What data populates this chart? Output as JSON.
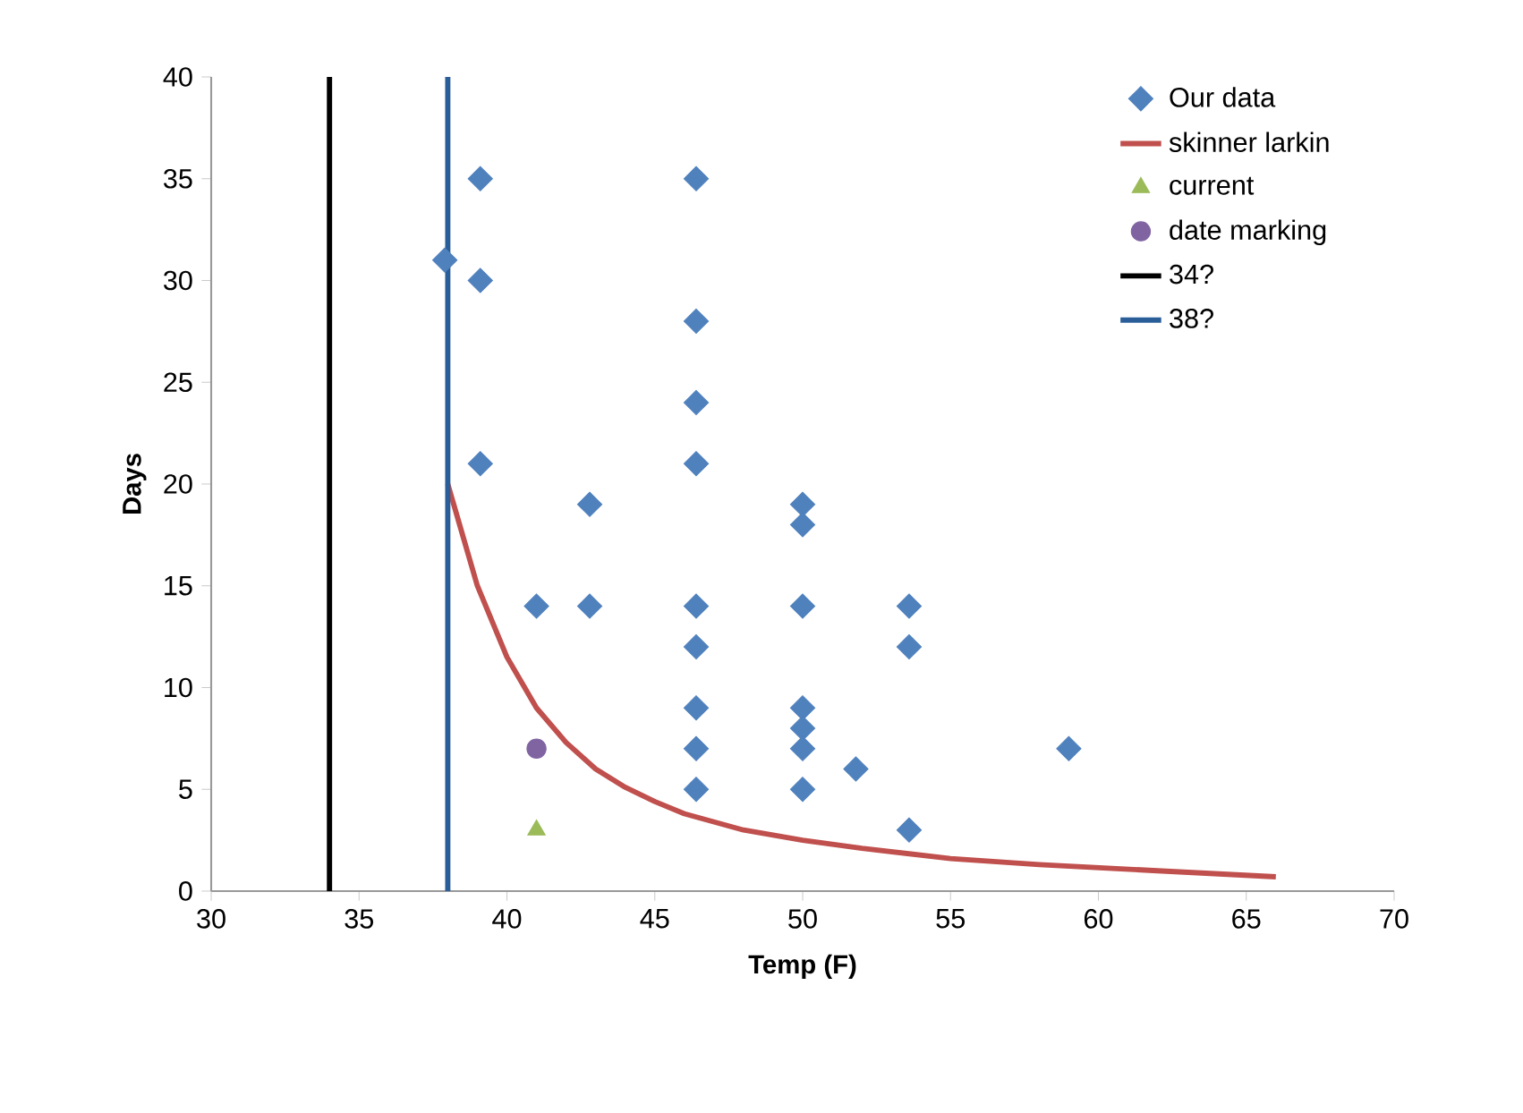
{
  "chart_data": {
    "type": "scatter",
    "xlabel": "Temp (F)",
    "ylabel": "Days",
    "xlim": [
      30,
      70
    ],
    "ylim": [
      0,
      40
    ],
    "xticks": [
      30,
      35,
      40,
      45,
      50,
      55,
      60,
      65,
      70
    ],
    "yticks": [
      0,
      5,
      10,
      15,
      20,
      25,
      30,
      35,
      40
    ],
    "grid": false,
    "legend": "top right",
    "series": [
      {
        "name": "Our data",
        "marker": "diamond",
        "color": "#4f81bd",
        "x": [
          37.9,
          39.1,
          39.1,
          39.1,
          41,
          42.8,
          42.8,
          46.4,
          46.4,
          46.4,
          46.4,
          46.4,
          46.4,
          46.4,
          46.4,
          46.4,
          50,
          50,
          50,
          50,
          50,
          50,
          50,
          51.8,
          53.6,
          53.6,
          53.6,
          59
        ],
        "values": [
          31,
          35,
          30,
          21,
          14,
          19,
          14,
          35,
          28,
          24,
          21,
          14,
          12,
          9,
          7,
          5,
          19,
          18,
          14,
          9,
          8,
          7,
          5,
          6,
          14,
          12,
          3,
          7
        ]
      },
      {
        "name": "skinner larkin",
        "type": "line",
        "marker": "none",
        "color": "#c0504d",
        "x": [
          38,
          39,
          40,
          41,
          42,
          43,
          44,
          45,
          46,
          48,
          50,
          52,
          55,
          58,
          62,
          66
        ],
        "values": [
          20,
          15,
          11.5,
          9,
          7.3,
          6,
          5.1,
          4.4,
          3.8,
          3,
          2.5,
          2.1,
          1.6,
          1.3,
          1.0,
          0.7
        ]
      },
      {
        "name": "current",
        "marker": "triangle",
        "color": "#9bbb59",
        "x": [
          41
        ],
        "values": [
          3
        ]
      },
      {
        "name": "date marking",
        "marker": "circle",
        "color": "#8064a2",
        "x": [
          41
        ],
        "values": [
          7
        ]
      },
      {
        "name": "34?",
        "type": "line",
        "marker": "none",
        "color": "#000000",
        "x": [
          34,
          34
        ],
        "values": [
          0,
          40
        ]
      },
      {
        "name": "38?",
        "type": "line",
        "marker": "none",
        "color": "#2a5e98",
        "x": [
          38,
          38
        ],
        "values": [
          0,
          40
        ]
      }
    ]
  }
}
